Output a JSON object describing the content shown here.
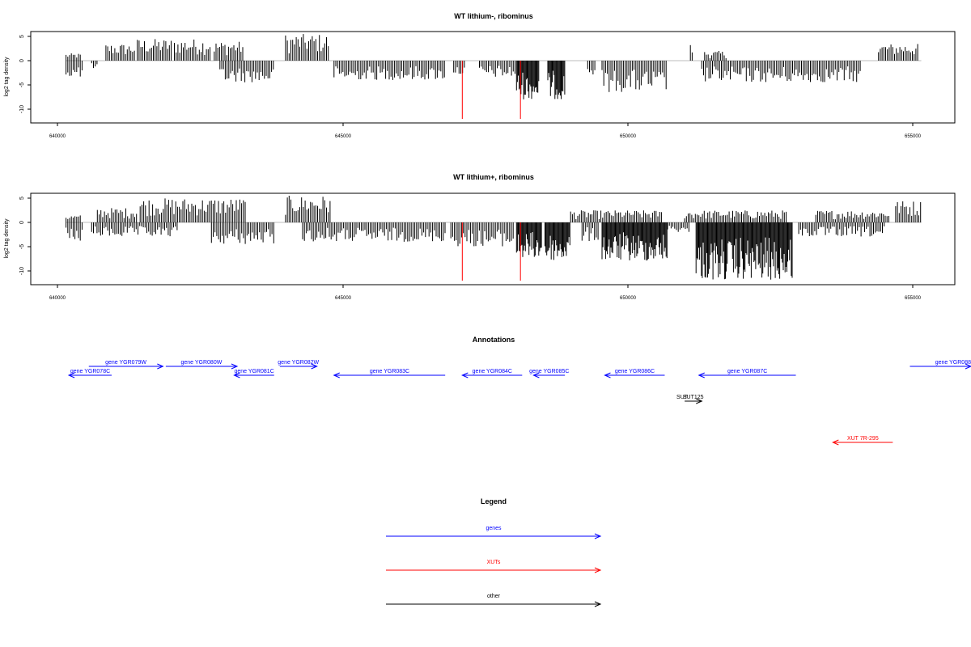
{
  "panels": [
    {
      "title": "WT lithium-, ribominus",
      "ylabel": "log2 tag density",
      "yticks": [
        "5",
        "0",
        "-5",
        "-10"
      ],
      "xticks": [
        "640000",
        "645000",
        "650000",
        "655000"
      ],
      "red_peaks": [
        647100,
        648120
      ]
    },
    {
      "title": "WT lithium+, ribominus",
      "ylabel": "log2 tag density",
      "yticks": [
        "5",
        "0",
        "-5",
        "-10"
      ],
      "xticks": [
        "640000",
        "645000",
        "650000",
        "655000"
      ],
      "red_peaks": [
        647100,
        648120
      ]
    }
  ],
  "chart_data": [
    {
      "type": "bar",
      "title": "WT lithium-, ribominus",
      "xlabel": "",
      "ylabel": "log2 tag density",
      "xlim": [
        639800,
        656500
      ],
      "ylim": [
        -12.5,
        6
      ],
      "grid": false,
      "plus_strand_segments": [
        {
          "x": [
            640150,
            640400
          ],
          "max": 1.5
        },
        {
          "x": [
            640850,
            641350
          ],
          "max": 3.5
        },
        {
          "x": [
            641400,
            642000
          ],
          "max": 4.5
        },
        {
          "x": [
            642050,
            642700
          ],
          "max": 4.5
        },
        {
          "x": [
            642750,
            643250
          ],
          "max": 4
        },
        {
          "x": [
            644000,
            644750
          ],
          "max": 5.5
        },
        {
          "x": [
            651100,
            651150
          ],
          "max": 3.5
        },
        {
          "x": [
            651350,
            651750
          ],
          "max": 2
        },
        {
          "x": [
            654400,
            655100
          ],
          "max": 3.5
        }
      ],
      "minus_strand_segments": [
        {
          "x": [
            640150,
            640450
          ],
          "min": -3.5
        },
        {
          "x": [
            640600,
            640700
          ],
          "min": -2
        },
        {
          "x": [
            642850,
            643800
          ],
          "min": -4.5
        },
        {
          "x": [
            644850,
            646800
          ],
          "min": -4
        },
        {
          "x": [
            646950,
            647150
          ],
          "min": -3
        },
        {
          "x": [
            647400,
            648050
          ],
          "min": -3.5
        },
        {
          "x": [
            648050,
            648450
          ],
          "min": -8
        },
        {
          "x": [
            648600,
            648900
          ],
          "min": -8
        },
        {
          "x": [
            649300,
            649450
          ],
          "min": -3
        },
        {
          "x": [
            649550,
            650700
          ],
          "min": -6.5
        },
        {
          "x": [
            651300,
            654100
          ],
          "min": -4.5
        }
      ]
    },
    {
      "type": "bar",
      "title": "WT lithium+, ribominus",
      "xlabel": "",
      "ylabel": "log2 tag density",
      "xlim": [
        639800,
        656500
      ],
      "ylim": [
        -12.5,
        6
      ],
      "grid": false,
      "plus_strand_segments": [
        {
          "x": [
            640150,
            640400
          ],
          "max": 1.5
        },
        {
          "x": [
            640700,
            641400
          ],
          "max": 3
        },
        {
          "x": [
            641450,
            643300
          ],
          "max": 5
        },
        {
          "x": [
            644000,
            644800
          ],
          "max": 5.5
        },
        {
          "x": [
            649000,
            650600
          ],
          "max": 2.5
        },
        {
          "x": [
            651000,
            652800
          ],
          "max": 2.5
        },
        {
          "x": [
            653300,
            654600
          ],
          "max": 2.5
        },
        {
          "x": [
            654700,
            655150
          ],
          "max": 4.5
        }
      ],
      "minus_strand_segments": [
        {
          "x": [
            640150,
            640450
          ],
          "min": -4
        },
        {
          "x": [
            640600,
            642100
          ],
          "min": -3
        },
        {
          "x": [
            642700,
            643800
          ],
          "min": -4.5
        },
        {
          "x": [
            644300,
            646800
          ],
          "min": -4
        },
        {
          "x": [
            646900,
            648000
          ],
          "min": -5
        },
        {
          "x": [
            648050,
            648500
          ],
          "min": -7.5
        },
        {
          "x": [
            648550,
            649000
          ],
          "min": -8
        },
        {
          "x": [
            649200,
            649500
          ],
          "min": -4
        },
        {
          "x": [
            649550,
            650700
          ],
          "min": -8
        },
        {
          "x": [
            650700,
            651100
          ],
          "min": -2
        },
        {
          "x": [
            651200,
            652900
          ],
          "min": -12
        },
        {
          "x": [
            653000,
            654500
          ],
          "min": -3
        }
      ]
    }
  ],
  "annotations": {
    "title": "Annotations",
    "features": [
      {
        "label": "gene YGR078C",
        "type": "gene",
        "strand": "-",
        "start": 640200,
        "end": 640950,
        "row": 1
      },
      {
        "label": "gene YGR079W",
        "type": "gene",
        "strand": "+",
        "start": 640550,
        "end": 641850,
        "row": 0
      },
      {
        "label": "gene YGR080W",
        "type": "gene",
        "strand": "+",
        "start": 641900,
        "end": 643150,
        "row": 0
      },
      {
        "label": "gene YGR081C",
        "type": "gene",
        "strand": "-",
        "start": 643100,
        "end": 643800,
        "row": 1
      },
      {
        "label": "gene YGR082W",
        "type": "gene",
        "strand": "+",
        "start": 643900,
        "end": 644550,
        "row": 0
      },
      {
        "label": "gene YGR083C",
        "type": "gene",
        "strand": "-",
        "start": 644850,
        "end": 646800,
        "row": 1
      },
      {
        "label": "gene YGR084C",
        "type": "gene",
        "strand": "-",
        "start": 647100,
        "end": 648150,
        "row": 1
      },
      {
        "label": "gene YGR085C",
        "type": "gene",
        "strand": "-",
        "start": 648350,
        "end": 648900,
        "row": 1
      },
      {
        "label": "gene YGR086C",
        "type": "gene",
        "strand": "-",
        "start": 649600,
        "end": 650650,
        "row": 1
      },
      {
        "label": "gene YGR087C",
        "type": "gene",
        "strand": "-",
        "start": 651250,
        "end": 652950,
        "row": 1
      },
      {
        "label": "gene YGR088",
        "type": "gene",
        "strand": "+",
        "start": 654950,
        "end": 656600,
        "row": 0
      },
      {
        "label": "SUT",
        "type": "other",
        "strand": "+",
        "start": 650800,
        "end": 650800,
        "row": 2,
        "label_anchor": "start"
      },
      {
        "label": "SUT125",
        "type": "other",
        "strand": "+",
        "start": 651000,
        "end": 651300,
        "row": 2
      },
      {
        "label": "XUT 7R-295",
        "type": "XUT",
        "strand": "-",
        "start": 653600,
        "end": 654650,
        "row": 3
      }
    ]
  },
  "legend": {
    "title": "Legend",
    "items": [
      {
        "label": "genes",
        "color": "#0000ff"
      },
      {
        "label": "XUTs",
        "color": "#ff0000"
      },
      {
        "label": "other",
        "color": "#000000"
      }
    ]
  },
  "colors": {
    "bars": "#000000",
    "baseline": "#bebebe",
    "red_peak": "#ff0000",
    "gene": "#0000ff",
    "XUT": "#ff0000",
    "other": "#000000"
  }
}
